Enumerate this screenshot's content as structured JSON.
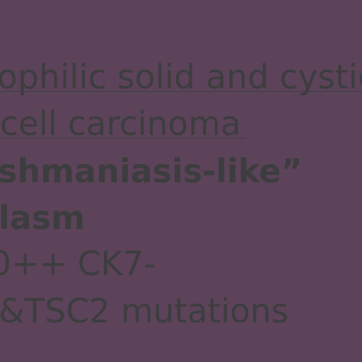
{
  "slide": {
    "line1": "ophilic solid and cystic",
    "line2": "cell carcinoma",
    "line3": "shmaniasis-like”",
    "line4": "lasm",
    "line5": "0++ CK7-",
    "line6": " &TSC2 mutations"
  },
  "colors": {
    "background": "#5c4359",
    "text": "#3d3d3f"
  }
}
